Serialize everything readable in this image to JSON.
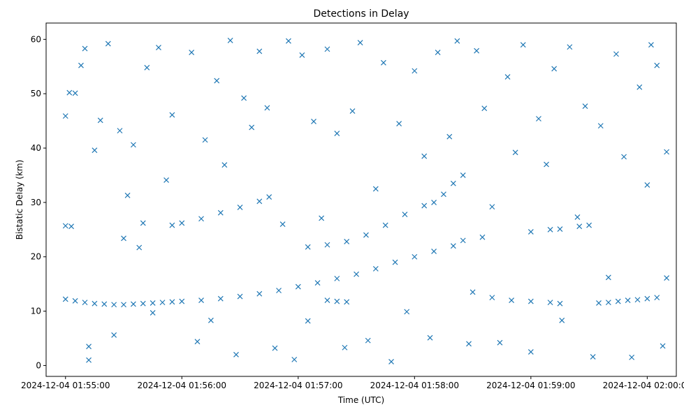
{
  "chart_data": {
    "type": "scatter",
    "title": "Detections in Delay",
    "xlabel": "Time (UTC)",
    "ylabel": "Bistatic Delay (km)",
    "marker": "x",
    "color": "#1f77b4",
    "xlim": [
      "2024-12-04 01:54:50",
      "2024-12-04 02:00:15"
    ],
    "ylim": [
      -2,
      63
    ],
    "x_ticks": [
      "2024-12-04 01:55:00",
      "2024-12-04 01:56:00",
      "2024-12-04 01:57:00",
      "2024-12-04 01:58:00",
      "2024-12-04 01:59:00",
      "2024-12-04 02:00:00"
    ],
    "y_ticks": [
      0,
      10,
      20,
      30,
      40,
      50,
      60
    ],
    "grid": false,
    "legend": "none",
    "series": [
      {
        "points": [
          [
            "2024-12-04 01:55:00",
            12.2
          ],
          [
            "2024-12-04 01:55:05",
            11.9
          ],
          [
            "2024-12-04 01:55:10",
            11.6
          ],
          [
            "2024-12-04 01:55:15",
            11.4
          ],
          [
            "2024-12-04 01:55:20",
            11.3
          ],
          [
            "2024-12-04 01:55:25",
            11.2
          ],
          [
            "2024-12-04 01:55:30",
            11.2
          ],
          [
            "2024-12-04 01:55:35",
            11.3
          ],
          [
            "2024-12-04 01:55:40",
            11.4
          ],
          [
            "2024-12-04 01:55:45",
            11.5
          ],
          [
            "2024-12-04 01:55:50",
            11.6
          ],
          [
            "2024-12-04 01:55:55",
            11.7
          ],
          [
            "2024-12-04 01:56:00",
            11.8
          ],
          [
            "2024-12-04 01:56:10",
            12.0
          ],
          [
            "2024-12-04 01:56:20",
            12.3
          ],
          [
            "2024-12-04 01:56:30",
            12.7
          ],
          [
            "2024-12-04 01:56:40",
            13.2
          ],
          [
            "2024-12-04 01:56:50",
            13.8
          ],
          [
            "2024-12-04 01:57:00",
            14.5
          ],
          [
            "2024-12-04 01:57:10",
            15.2
          ],
          [
            "2024-12-04 01:57:20",
            16.0
          ],
          [
            "2024-12-04 01:57:30",
            16.8
          ],
          [
            "2024-12-04 01:57:40",
            17.8
          ],
          [
            "2024-12-04 01:57:50",
            19.0
          ],
          [
            "2024-12-04 01:58:00",
            20.0
          ],
          [
            "2024-12-04 01:58:10",
            21.0
          ],
          [
            "2024-12-04 01:58:20",
            22.0
          ],
          [
            "2024-12-04 01:55:00",
            25.7
          ],
          [
            "2024-12-04 01:55:03",
            25.6
          ],
          [
            "2024-12-04 01:55:30",
            23.4
          ],
          [
            "2024-12-04 01:55:40",
            26.2
          ],
          [
            "2024-12-04 01:55:55",
            25.8
          ],
          [
            "2024-12-04 01:56:00",
            26.2
          ],
          [
            "2024-12-04 01:56:10",
            27.0
          ],
          [
            "2024-12-04 01:56:20",
            28.1
          ],
          [
            "2024-12-04 01:56:30",
            29.1
          ],
          [
            "2024-12-04 01:56:40",
            30.2
          ],
          [
            "2024-12-04 01:56:45",
            31.0
          ],
          [
            "2024-12-04 01:57:05",
            21.8
          ],
          [
            "2024-12-04 01:57:15",
            22.2
          ],
          [
            "2024-12-04 01:57:25",
            22.8
          ],
          [
            "2024-12-04 01:57:35",
            24.0
          ],
          [
            "2024-12-04 01:57:45",
            25.8
          ],
          [
            "2024-12-04 01:57:55",
            27.8
          ],
          [
            "2024-12-04 01:58:05",
            29.4
          ],
          [
            "2024-12-04 01:58:10",
            30.0
          ],
          [
            "2024-12-04 01:57:15",
            12.0
          ],
          [
            "2024-12-04 01:57:20",
            11.8
          ],
          [
            "2024-12-04 01:57:25",
            11.7
          ],
          [
            "2024-12-04 01:58:15",
            31.5
          ],
          [
            "2024-12-04 01:58:20",
            33.5
          ],
          [
            "2024-12-04 01:58:25",
            35.0
          ],
          [
            "2024-12-04 01:58:30",
            13.5
          ],
          [
            "2024-12-04 01:58:40",
            12.5
          ],
          [
            "2024-12-04 01:58:50",
            12.0
          ],
          [
            "2024-12-04 01:59:00",
            11.8
          ],
          [
            "2024-12-04 01:59:10",
            11.6
          ],
          [
            "2024-12-04 01:59:15",
            11.4
          ],
          [
            "2024-12-04 01:58:25",
            23.0
          ],
          [
            "2024-12-04 01:58:35",
            23.6
          ],
          [
            "2024-12-04 01:59:00",
            24.6
          ],
          [
            "2024-12-04 01:59:10",
            25.0
          ],
          [
            "2024-12-04 01:59:15",
            25.1
          ],
          [
            "2024-12-04 01:59:25",
            25.6
          ],
          [
            "2024-12-04 01:59:30",
            25.8
          ],
          [
            "2024-12-04 01:59:35",
            11.5
          ],
          [
            "2024-12-04 01:59:40",
            11.6
          ],
          [
            "2024-12-04 01:59:45",
            11.8
          ],
          [
            "2024-12-04 01:59:50",
            12.0
          ],
          [
            "2024-12-04 01:59:55",
            12.1
          ],
          [
            "2024-12-04 02:00:00",
            12.3
          ],
          [
            "2024-12-04 02:00:05",
            12.5
          ],
          [
            "2024-12-04 01:55:00",
            45.9
          ],
          [
            "2024-12-04 01:55:02",
            50.2
          ],
          [
            "2024-12-04 01:55:05",
            50.1
          ],
          [
            "2024-12-04 01:55:08",
            55.2
          ],
          [
            "2024-12-04 01:55:10",
            58.3
          ],
          [
            "2024-12-04 01:55:12",
            1.0
          ],
          [
            "2024-12-04 01:55:12",
            3.5
          ],
          [
            "2024-12-04 01:55:15",
            39.6
          ],
          [
            "2024-12-04 01:55:18",
            45.1
          ],
          [
            "2024-12-04 01:55:22",
            59.2
          ],
          [
            "2024-12-04 01:55:25",
            5.6
          ],
          [
            "2024-12-04 01:55:28",
            43.2
          ],
          [
            "2024-12-04 01:55:32",
            31.3
          ],
          [
            "2024-12-04 01:55:35",
            40.6
          ],
          [
            "2024-12-04 01:55:38",
            21.7
          ],
          [
            "2024-12-04 01:55:42",
            54.8
          ],
          [
            "2024-12-04 01:55:45",
            9.7
          ],
          [
            "2024-12-04 01:55:48",
            58.5
          ],
          [
            "2024-12-04 01:55:52",
            34.1
          ],
          [
            "2024-12-04 01:55:55",
            46.1
          ],
          [
            "2024-12-04 01:56:05",
            57.6
          ],
          [
            "2024-12-04 01:56:08",
            4.4
          ],
          [
            "2024-12-04 01:56:12",
            41.5
          ],
          [
            "2024-12-04 01:56:15",
            8.3
          ],
          [
            "2024-12-04 01:56:18",
            52.4
          ],
          [
            "2024-12-04 01:56:22",
            36.9
          ],
          [
            "2024-12-04 01:56:25",
            59.8
          ],
          [
            "2024-12-04 01:56:28",
            2.0
          ],
          [
            "2024-12-04 01:56:32",
            49.2
          ],
          [
            "2024-12-04 01:56:36",
            43.8
          ],
          [
            "2024-12-04 01:56:40",
            57.8
          ],
          [
            "2024-12-04 01:56:44",
            47.4
          ],
          [
            "2024-12-04 01:56:48",
            3.2
          ],
          [
            "2024-12-04 01:56:52",
            26.0
          ],
          [
            "2024-12-04 01:56:55",
            59.7
          ],
          [
            "2024-12-04 01:56:58",
            1.1
          ],
          [
            "2024-12-04 01:57:02",
            57.1
          ],
          [
            "2024-12-04 01:57:05",
            8.2
          ],
          [
            "2024-12-04 01:57:08",
            44.9
          ],
          [
            "2024-12-04 01:57:12",
            27.1
          ],
          [
            "2024-12-04 01:57:15",
            58.2
          ],
          [
            "2024-12-04 01:57:20",
            42.7
          ],
          [
            "2024-12-04 01:57:24",
            3.3
          ],
          [
            "2024-12-04 01:57:28",
            46.8
          ],
          [
            "2024-12-04 01:57:32",
            59.4
          ],
          [
            "2024-12-04 01:57:36",
            4.6
          ],
          [
            "2024-12-04 01:57:40",
            32.5
          ],
          [
            "2024-12-04 01:57:44",
            55.7
          ],
          [
            "2024-12-04 01:57:48",
            0.7
          ],
          [
            "2024-12-04 01:57:52",
            44.5
          ],
          [
            "2024-12-04 01:57:56",
            9.9
          ],
          [
            "2024-12-04 01:58:00",
            54.2
          ],
          [
            "2024-12-04 01:58:05",
            38.5
          ],
          [
            "2024-12-04 01:58:08",
            5.1
          ],
          [
            "2024-12-04 01:58:12",
            57.6
          ],
          [
            "2024-12-04 01:58:18",
            42.1
          ],
          [
            "2024-12-04 01:58:22",
            59.7
          ],
          [
            "2024-12-04 01:58:28",
            4.0
          ],
          [
            "2024-12-04 01:58:32",
            57.9
          ],
          [
            "2024-12-04 01:58:36",
            47.3
          ],
          [
            "2024-12-04 01:58:40",
            29.2
          ],
          [
            "2024-12-04 01:58:44",
            4.2
          ],
          [
            "2024-12-04 01:58:48",
            53.1
          ],
          [
            "2024-12-04 01:58:52",
            39.2
          ],
          [
            "2024-12-04 01:58:56",
            59.0
          ],
          [
            "2024-12-04 01:59:00",
            2.5
          ],
          [
            "2024-12-04 01:59:04",
            45.4
          ],
          [
            "2024-12-04 01:59:08",
            37.0
          ],
          [
            "2024-12-04 01:59:12",
            54.6
          ],
          [
            "2024-12-04 01:59:16",
            8.3
          ],
          [
            "2024-12-04 01:59:20",
            58.6
          ],
          [
            "2024-12-04 01:59:24",
            27.3
          ],
          [
            "2024-12-04 01:59:28",
            47.7
          ],
          [
            "2024-12-04 01:59:32",
            1.6
          ],
          [
            "2024-12-04 01:59:36",
            44.1
          ],
          [
            "2024-12-04 01:59:40",
            16.2
          ],
          [
            "2024-12-04 01:59:44",
            57.3
          ],
          [
            "2024-12-04 01:59:48",
            38.4
          ],
          [
            "2024-12-04 01:59:52",
            1.5
          ],
          [
            "2024-12-04 01:59:56",
            51.2
          ],
          [
            "2024-12-04 02:00:00",
            33.2
          ],
          [
            "2024-12-04 02:00:02",
            59.0
          ],
          [
            "2024-12-04 02:00:05",
            55.2
          ],
          [
            "2024-12-04 02:00:08",
            3.6
          ],
          [
            "2024-12-04 02:00:10",
            39.3
          ],
          [
            "2024-12-04 02:00:10",
            16.1
          ]
        ]
      }
    ]
  }
}
